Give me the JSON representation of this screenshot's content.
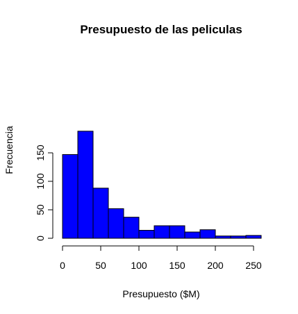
{
  "chart_data": {
    "type": "bar",
    "title": "Presupuesto de las peliculas",
    "xlabel": "Presupuesto ($M)",
    "ylabel": "Frecuencia",
    "bins": [
      {
        "from": 0,
        "to": 20,
        "count": 147
      },
      {
        "from": 20,
        "to": 40,
        "count": 188
      },
      {
        "from": 40,
        "to": 60,
        "count": 88
      },
      {
        "from": 60,
        "to": 80,
        "count": 52
      },
      {
        "from": 80,
        "to": 100,
        "count": 37
      },
      {
        "from": 100,
        "to": 120,
        "count": 14
      },
      {
        "from": 120,
        "to": 140,
        "count": 22
      },
      {
        "from": 140,
        "to": 160,
        "count": 22
      },
      {
        "from": 160,
        "to": 180,
        "count": 11
      },
      {
        "from": 180,
        "to": 200,
        "count": 15
      },
      {
        "from": 200,
        "to": 220,
        "count": 4
      },
      {
        "from": 220,
        "to": 240,
        "count": 4
      },
      {
        "from": 240,
        "to": 260,
        "count": 5
      }
    ],
    "xlim": [
      0,
      260
    ],
    "ylim": [
      0,
      188
    ],
    "xticks": [
      0,
      50,
      100,
      150,
      200,
      250
    ],
    "yticks": [
      0,
      50,
      100,
      150
    ],
    "bar_color": "#0000ff",
    "bar_edge_color": "#000000",
    "grid": false,
    "legend": "none"
  }
}
